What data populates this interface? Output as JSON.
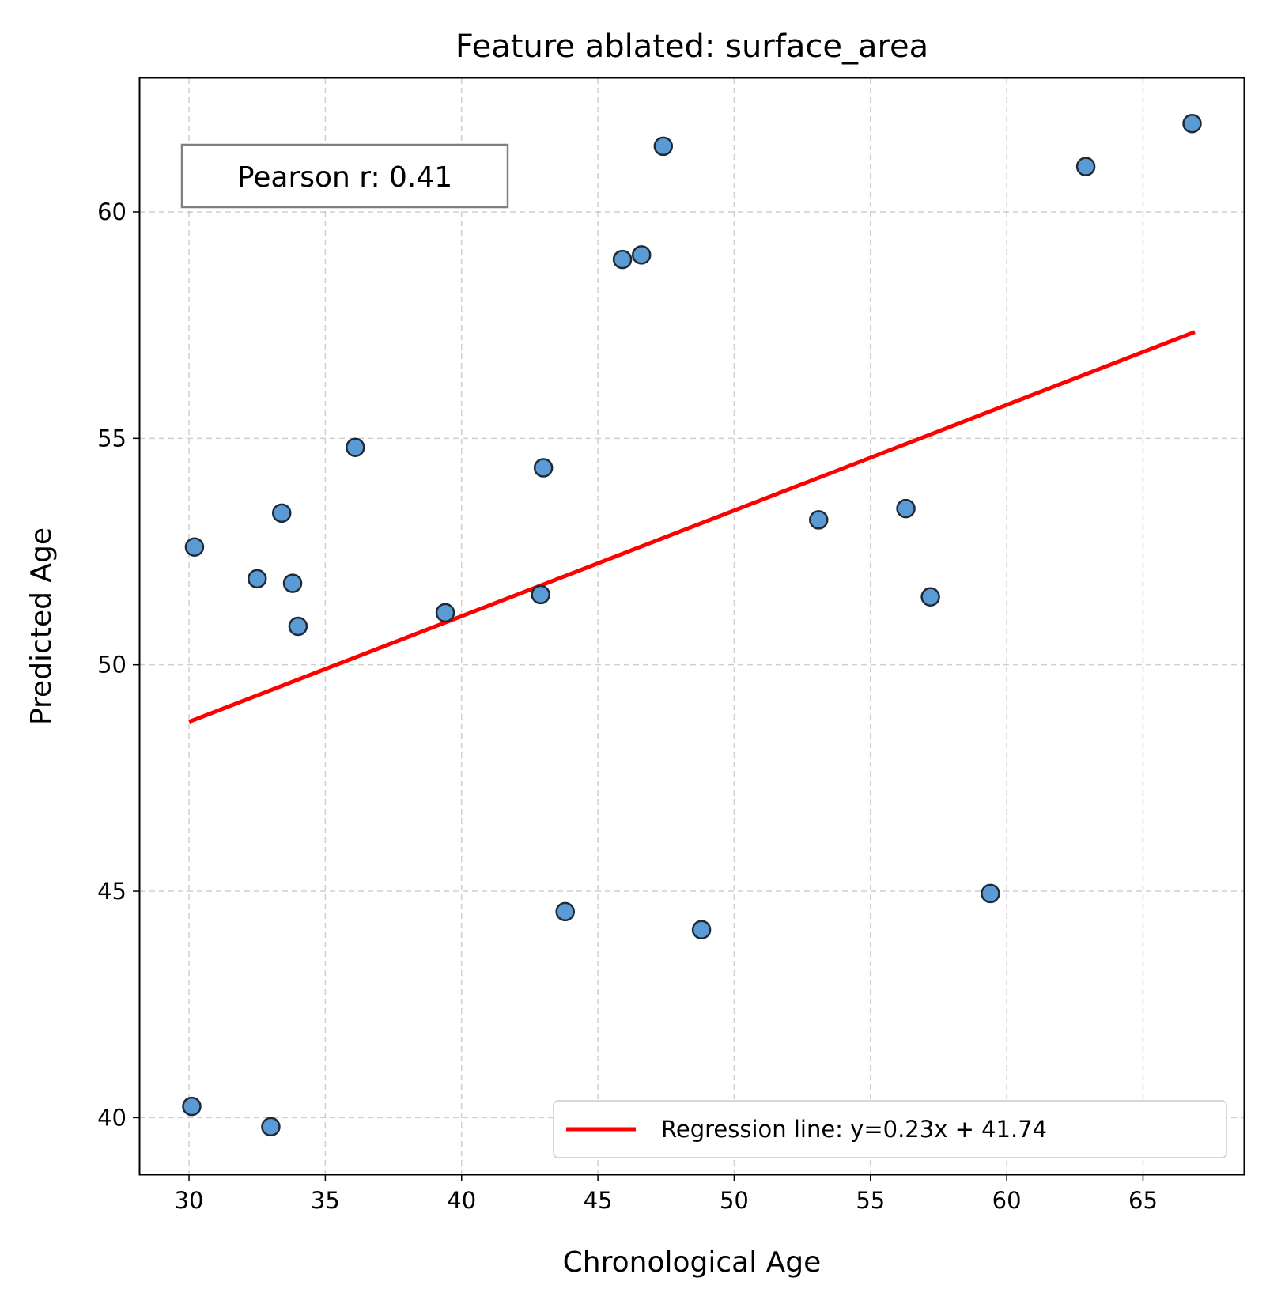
{
  "chart_data": {
    "type": "scatter",
    "title": "Feature ablated: surface_area",
    "xlabel": "Chronological Age",
    "ylabel": "Predicted Age",
    "xlim": [
      28.2,
      68.7
    ],
    "ylim": [
      38.75,
      62.95
    ],
    "xticks": [
      30,
      35,
      40,
      45,
      50,
      55,
      60,
      65
    ],
    "yticks": [
      40,
      45,
      50,
      55,
      60
    ],
    "grid": true,
    "annotation": "Pearson r: 0.41",
    "legend": {
      "placement": "lower-right",
      "entries": [
        "Regression line: y=0.23x + 41.74"
      ]
    },
    "colors": {
      "points": "#5b9bd5",
      "point_edge": "#1f2a36",
      "regression": "#ff0000"
    },
    "series": [
      {
        "x": [
          30.1,
          33.0,
          30.2,
          32.5,
          33.4,
          33.8,
          34.0,
          36.1,
          39.4,
          42.9,
          43.0,
          43.8,
          45.9,
          46.6,
          47.4,
          48.8,
          53.1,
          56.3,
          57.2,
          59.4,
          62.9,
          66.8
        ],
        "y": [
          40.25,
          39.8,
          52.6,
          51.9,
          53.35,
          51.8,
          50.85,
          54.8,
          51.15,
          51.55,
          54.35,
          44.55,
          58.95,
          59.05,
          61.45,
          44.15,
          53.2,
          53.45,
          51.5,
          44.95,
          61.0,
          61.95
        ]
      },
      {
        "name": "Regression line: y=0.23x + 41.74",
        "kind": "line",
        "x": [
          30.0,
          66.9
        ],
        "y": [
          48.74,
          57.35
        ]
      }
    ]
  }
}
